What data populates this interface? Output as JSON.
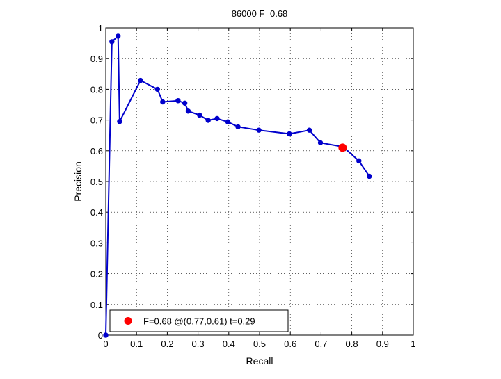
{
  "chart_data": {
    "type": "line",
    "title": "86000 F=0.68",
    "xlabel": "Recall",
    "ylabel": "Precision",
    "xlim": [
      0,
      1
    ],
    "ylim": [
      0,
      1
    ],
    "xticks": [
      0,
      0.1,
      0.2,
      0.3,
      0.4,
      0.5,
      0.6,
      0.7,
      0.8,
      0.9,
      1
    ],
    "yticks": [
      0,
      0.1,
      0.2,
      0.3,
      0.4,
      0.5,
      0.6,
      0.7,
      0.8,
      0.9,
      1
    ],
    "xtick_labels": [
      "0",
      "0.1",
      "0.2",
      "0.3",
      "0.4",
      "0.5",
      "0.6",
      "0.7",
      "0.8",
      "0.9",
      "1"
    ],
    "ytick_labels": [
      "0",
      "0.1",
      "0.2",
      "0.3",
      "0.4",
      "0.5",
      "0.6",
      "0.7",
      "0.8",
      "0.9",
      "1"
    ],
    "grid": true,
    "grid_style": "dotted",
    "legend_position": "bottom-left",
    "series": [
      {
        "color": "#0000cc",
        "marker": "dot",
        "x": [
          0.0,
          0.02,
          0.04,
          0.045,
          0.113,
          0.168,
          0.185,
          0.235,
          0.257,
          0.268,
          0.305,
          0.333,
          0.362,
          0.397,
          0.43,
          0.498,
          0.597,
          0.662,
          0.698,
          0.772,
          0.823,
          0.857
        ],
        "y": [
          0.0,
          0.955,
          0.973,
          0.695,
          0.829,
          0.8,
          0.759,
          0.763,
          0.755,
          0.729,
          0.716,
          0.699,
          0.705,
          0.694,
          0.678,
          0.667,
          0.655,
          0.667,
          0.626,
          0.613,
          0.567,
          0.517
        ]
      }
    ],
    "highlight": {
      "x": 0.77,
      "y": 0.61,
      "color": "#ff0000",
      "label": "F=0.68 @(0.77,0.61) t=0.29"
    }
  }
}
